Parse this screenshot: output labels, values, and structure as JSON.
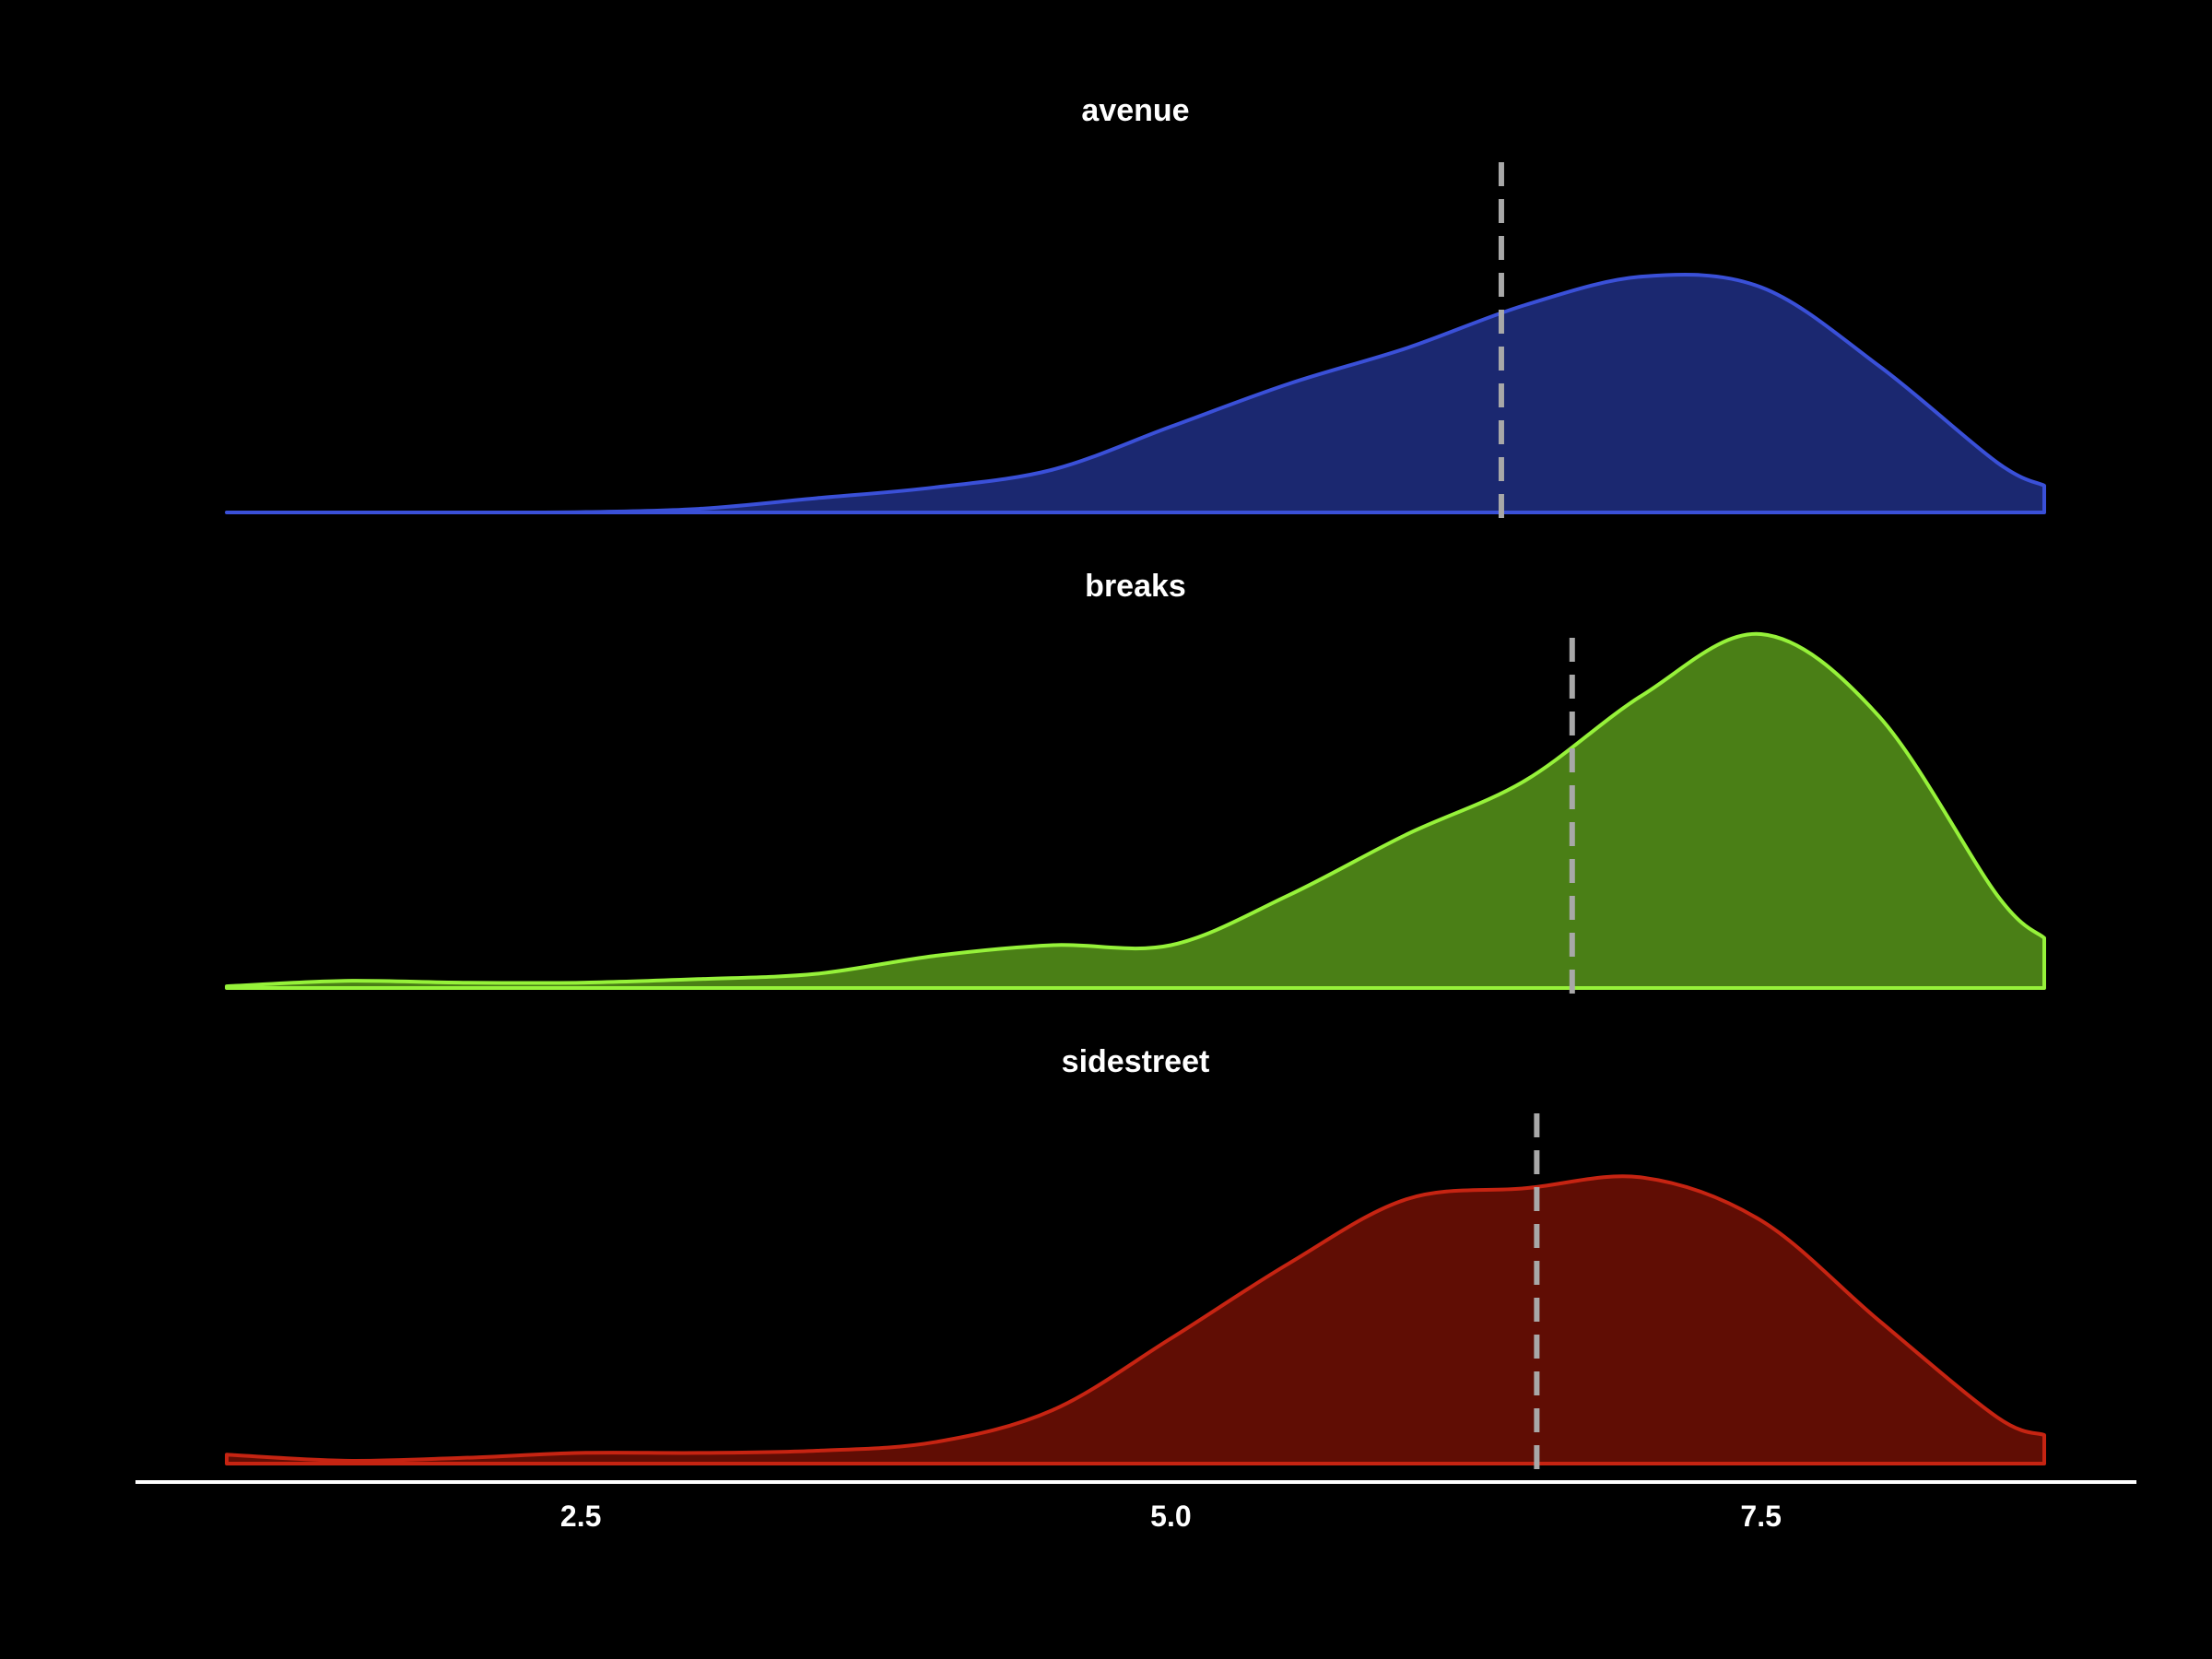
{
  "chart_data": {
    "type": "area",
    "subtype": "faceted-density",
    "title": "",
    "xlabel": "",
    "ylabel": "",
    "xlim": [
      1.0,
      8.7
    ],
    "x_ticks": [
      2.5,
      5.0,
      7.5
    ],
    "x_tick_labels": [
      "2.5",
      "5.0",
      "7.5"
    ],
    "grid": false,
    "legend": "none",
    "background": "#000000",
    "axis_color": "#ffffff",
    "mean_line_color": "#a8a8a8",
    "x": [
      1.0,
      1.5,
      2.0,
      2.5,
      3.0,
      3.5,
      4.0,
      4.5,
      5.0,
      5.5,
      6.0,
      6.5,
      7.0,
      7.5,
      8.0,
      8.5,
      8.7
    ],
    "series": [
      {
        "name": "avenue",
        "fill": "#1b2870",
        "stroke": "#3a50d8",
        "y": [
          0.0,
          0.0,
          0.0,
          0.001,
          0.01,
          0.04,
          0.07,
          0.12,
          0.24,
          0.36,
          0.46,
          0.58,
          0.66,
          0.63,
          0.41,
          0.14,
          0.075
        ],
        "mean": 6.4
      },
      {
        "name": "breaks",
        "fill": "#4a7f16",
        "stroke": "#96f23a",
        "y": [
          0.005,
          0.02,
          0.015,
          0.015,
          0.025,
          0.04,
          0.09,
          0.12,
          0.12,
          0.26,
          0.43,
          0.58,
          0.82,
          0.99,
          0.76,
          0.26,
          0.14
        ],
        "mean": 6.7
      },
      {
        "name": "sidestreet",
        "fill": "#600d04",
        "stroke": "#c62412",
        "y": [
          0.025,
          0.008,
          0.016,
          0.03,
          0.03,
          0.036,
          0.06,
          0.15,
          0.35,
          0.56,
          0.74,
          0.77,
          0.8,
          0.68,
          0.4,
          0.13,
          0.08
        ],
        "mean": 6.55
      }
    ]
  }
}
